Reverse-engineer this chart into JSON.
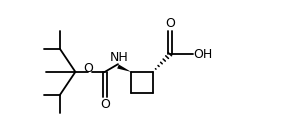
{
  "bg_color": "#ffffff",
  "line_color": "#000000",
  "lw": 1.3,
  "fs": 8.5,
  "figsize": [
    2.93,
    1.37
  ],
  "dpi": 100,
  "xlim": [
    0,
    2.93
  ],
  "ylim": [
    0,
    1.37
  ]
}
